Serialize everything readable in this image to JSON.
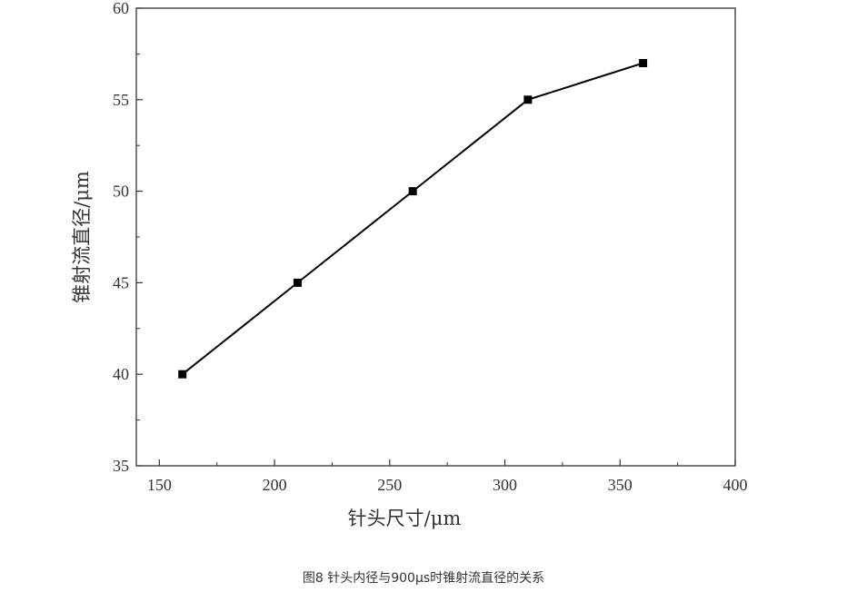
{
  "chart_data": {
    "type": "line",
    "title": "",
    "xlabel": "针头尺寸/μm",
    "ylabel": "锥射流直径/μm",
    "xlim": [
      140,
      400
    ],
    "ylim": [
      35,
      60
    ],
    "xticks": [
      150,
      200,
      250,
      300,
      350,
      400
    ],
    "yticks": [
      35,
      40,
      45,
      50,
      55,
      60
    ],
    "grid": false,
    "marker": "square",
    "line_color": "#000000",
    "series": [
      {
        "x": [
          160,
          210,
          260,
          310,
          360
        ],
        "values": [
          40,
          45,
          50,
          55,
          57
        ]
      }
    ]
  },
  "caption": "图8   针头内径与900μs时锥射流直径的关系"
}
